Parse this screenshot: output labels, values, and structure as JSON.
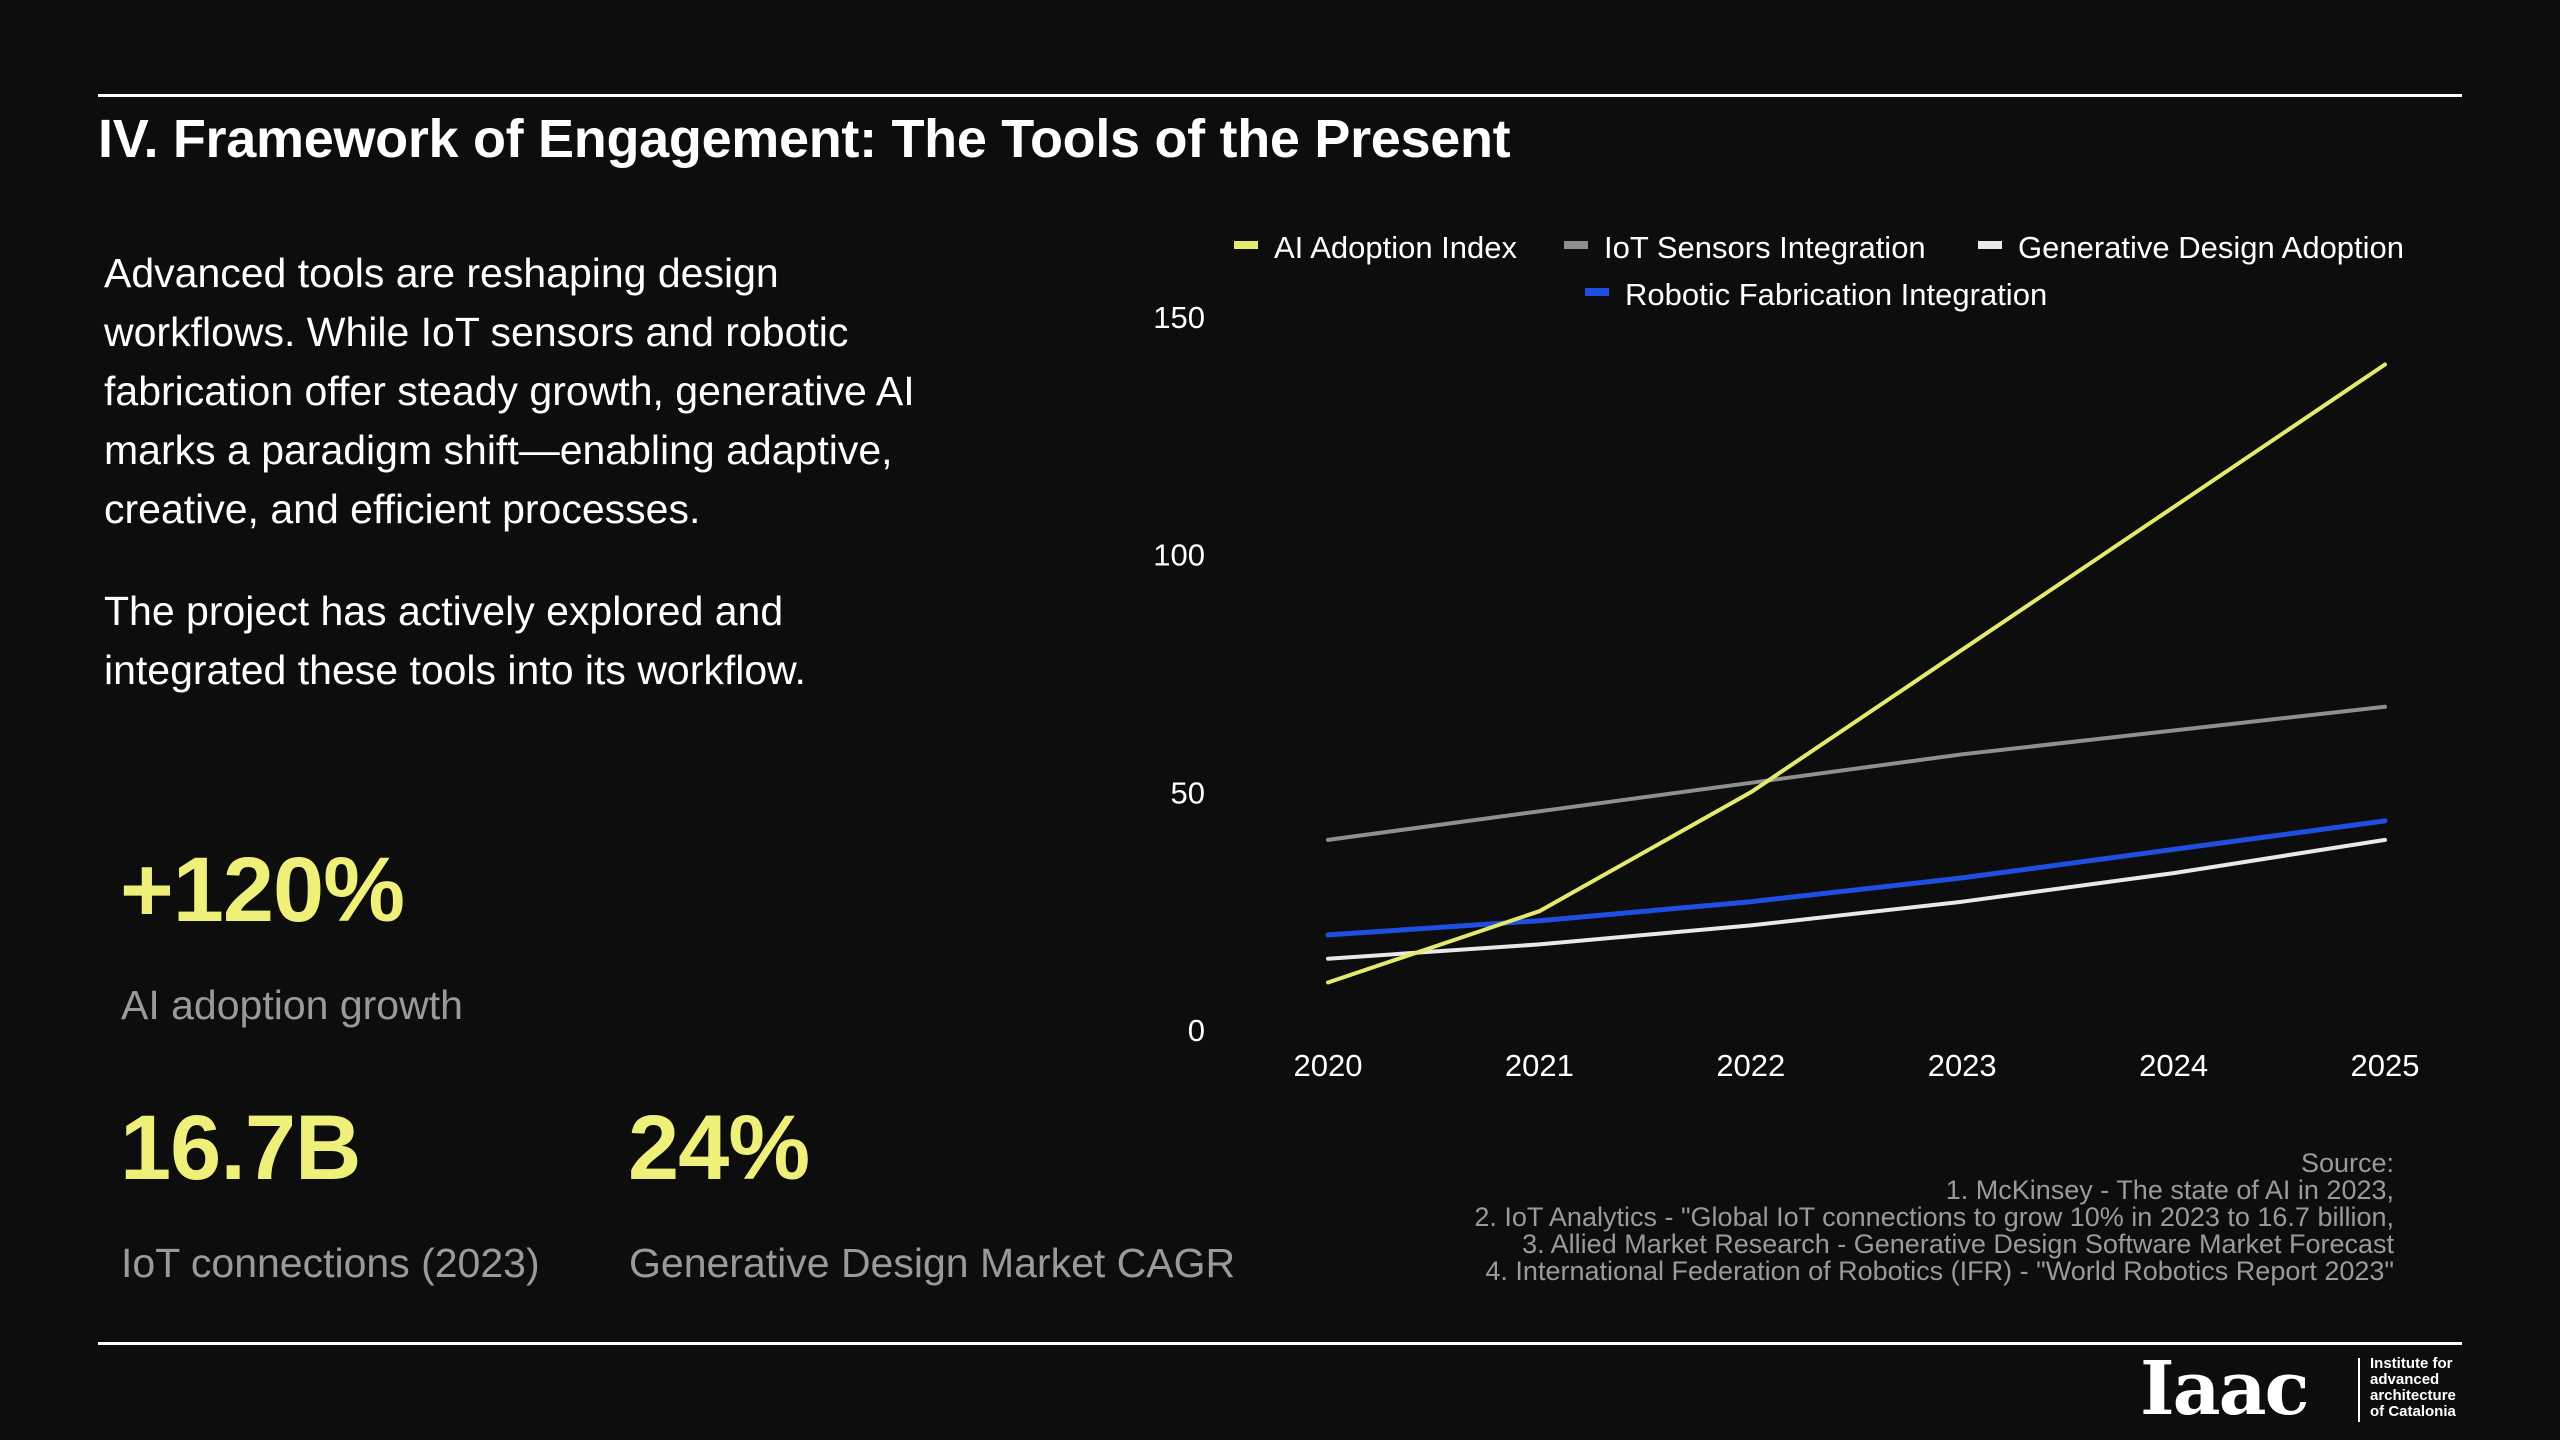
{
  "slide": {
    "title": "IV. Framework of Engagement: The Tools of the Present",
    "paragraphs": [
      "Advanced tools are reshaping design workflows. While IoT sensors and robotic fabrication offer steady growth, generative AI marks a paradigm shift—enabling adaptive, creative, and efficient processes.",
      "The project has actively explored and integrated these tools into its workflow."
    ]
  },
  "stats": [
    {
      "value": "+120%",
      "label": "AI adoption growth"
    },
    {
      "value": "16.7B",
      "label": "IoT connections (2023)"
    },
    {
      "value": "24%",
      "label": "Generative Design Market CAGR"
    }
  ],
  "source": {
    "heading": "Source:",
    "lines": [
      "1. McKinsey - The state of AI in 2023,",
      "2. IoT Analytics - \"Global IoT connections to grow 10% in 2023 to 16.7 billion,",
      "3. Allied Market Research - Generative Design Software Market Forecast",
      "4. International Federation of Robotics (IFR) - \"World Robotics Report 2023\""
    ]
  },
  "logo": {
    "wordmark": "Iaac",
    "lines": [
      "Institute for",
      "advanced",
      "architecture",
      "of Catalonia"
    ]
  },
  "chart_data": {
    "type": "line",
    "x": [
      "2020",
      "2021",
      "2022",
      "2023",
      "2024",
      "2025"
    ],
    "ylim": [
      0,
      150
    ],
    "yticks": [
      0,
      50,
      100,
      150
    ],
    "grid": false,
    "legend_position": "top",
    "series": [
      {
        "name": "AI Adoption Index",
        "color": "#e6ea6c",
        "values": [
          10,
          25,
          50,
          80,
          110,
          140
        ]
      },
      {
        "name": "IoT Sensors Integration",
        "color": "#8f8f8f",
        "values": [
          40,
          46,
          52,
          58,
          63,
          68
        ]
      },
      {
        "name": "Generative Design Adoption",
        "color": "#e9e9e9",
        "values": [
          15,
          18,
          22,
          27,
          33,
          40
        ]
      },
      {
        "name": "Robotic Fabrication Integration",
        "color": "#1f4fe0",
        "values": [
          20,
          23,
          27,
          32,
          38,
          44
        ]
      }
    ]
  }
}
